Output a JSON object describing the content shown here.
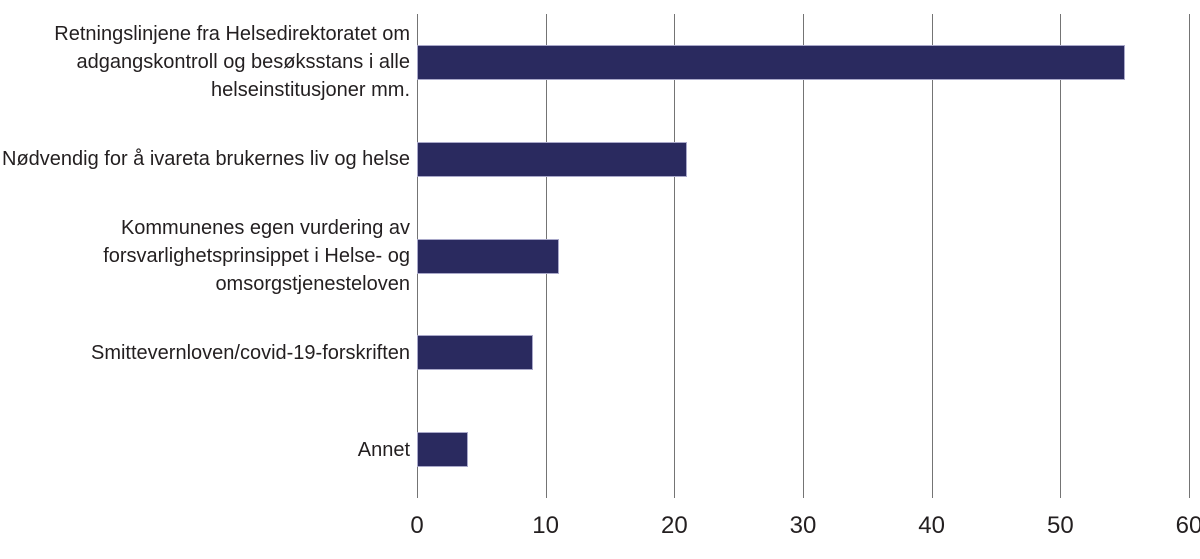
{
  "chart_data": {
    "type": "bar",
    "orientation": "horizontal",
    "title": "",
    "xlabel": "",
    "ylabel": "",
    "categories": [
      "Retningslinjene fra Helsedirektoratet om adgangskontroll og besøksstans i alle helseinstitusjoner mm.",
      "Nødvendig for å ivareta brukernes liv og helse",
      "Kommunenes egen vurdering av forsvarlighetsprinsippet i Helse- og omsorgstjenesteloven",
      "Smittevernloven/covid-19-forskriften",
      "Annet"
    ],
    "category_lines": [
      [
        "Retningslinjene fra Helsedirektoratet om",
        "adgangskontroll og besøksstans i alle",
        "helseinstitusjoner mm."
      ],
      [
        "Nødvendig for å ivareta brukernes liv og helse"
      ],
      [
        "Kommunenes egen vurdering av",
        "forsvarlighetsprinsippet i Helse- og",
        "omsorgstjenesteloven"
      ],
      [
        "Smittevernloven/covid-19-forskriften"
      ],
      [
        "Annet"
      ]
    ],
    "values": [
      55,
      21,
      11,
      9,
      4
    ],
    "xlim": [
      0,
      60
    ],
    "xticks": [
      0,
      10,
      20,
      30,
      40,
      50,
      60
    ],
    "grid": true,
    "legend": false,
    "colors": {
      "bar_fill": "#2a2a5f",
      "bar_border": "#a9a8c9",
      "gridline": "#747474",
      "text": "#231f20",
      "background": "#ffffff"
    }
  }
}
